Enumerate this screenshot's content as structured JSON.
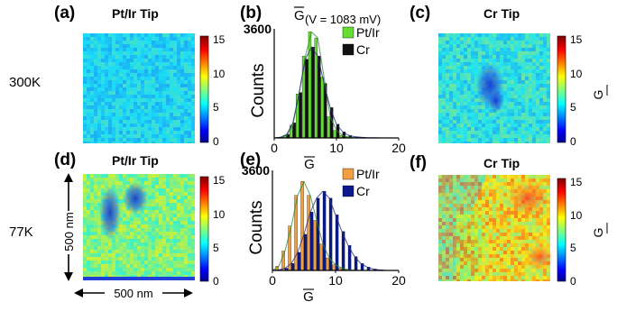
{
  "panels": {
    "a": {
      "label": "(a)",
      "title": "Pt/Ir Tip"
    },
    "b": {
      "label": "(b)",
      "title_prefix": "G",
      "title_cond": "(V = 1083 mV)"
    },
    "c": {
      "label": "(c)",
      "title": "Cr Tip"
    },
    "d": {
      "label": "(d)",
      "title": "Pt/Ir Tip"
    },
    "e": {
      "label": "(e)"
    },
    "f": {
      "label": "(f)",
      "title": "Cr Tip"
    }
  },
  "row_labels": {
    "top": "300K",
    "bottom": "77K"
  },
  "scale_bar": {
    "vertical": "500 nm",
    "horizontal": "500 nm"
  },
  "colorbar": {
    "ticks": [
      "15",
      "10",
      "5",
      "0"
    ],
    "label": "G"
  },
  "chart_data": [
    {
      "type": "bar",
      "panel": "b",
      "title": "G(V = 1083 mV)",
      "xlabel": "G",
      "ylabel": "Counts",
      "xlim": [
        0,
        20
      ],
      "ylim": [
        0,
        3600
      ],
      "x_ticks": [
        "0",
        "10",
        "20"
      ],
      "y_tick_label": "3600",
      "legend": "top-right",
      "bin_width": 1,
      "x": [
        1,
        2,
        3,
        4,
        5,
        6,
        7,
        8,
        9,
        10,
        11,
        12,
        13,
        14,
        15,
        16,
        17,
        18,
        19
      ],
      "series": [
        {
          "name": "Pt/Ir",
          "color": "#66dd33",
          "values": [
            20,
            80,
            420,
            1450,
            2700,
            3500,
            3300,
            2000,
            700,
            250,
            80,
            30,
            10,
            5,
            0,
            0,
            0,
            0,
            0
          ]
        },
        {
          "name": "Cr",
          "color": "#111111",
          "values": [
            20,
            120,
            500,
            1500,
            2600,
            3000,
            2700,
            1800,
            1000,
            450,
            200,
            80,
            40,
            20,
            10,
            5,
            0,
            0,
            0
          ]
        }
      ]
    },
    {
      "type": "bar",
      "panel": "e",
      "xlabel": "G",
      "ylabel": "Counts",
      "xlim": [
        0,
        20
      ],
      "ylim": [
        0,
        3600
      ],
      "x_ticks": [
        "0",
        "10",
        "20"
      ],
      "y_tick_label": "3600",
      "legend": "top-right",
      "bin_width": 1,
      "x": [
        1,
        2,
        3,
        4,
        5,
        6,
        7,
        8,
        9,
        10,
        11,
        12,
        13,
        14,
        15,
        16,
        17,
        18,
        19
      ],
      "series": [
        {
          "name": "Pt/Ir",
          "color": "#f0a040",
          "values": [
            150,
            700,
            1600,
            2700,
            3200,
            2700,
            1800,
            950,
            450,
            200,
            80,
            30,
            10,
            0,
            0,
            0,
            0,
            0,
            0
          ]
        },
        {
          "name": "Cr",
          "color": "#0b1a8c",
          "values": [
            20,
            80,
            250,
            650,
            1300,
            2100,
            2600,
            2850,
            2600,
            2000,
            1400,
            900,
            500,
            250,
            120,
            50,
            20,
            0,
            0
          ]
        }
      ]
    }
  ],
  "maps": {
    "a": {
      "mean_G": 5.5,
      "spread": 1.2
    },
    "c": {
      "mean_G": 6.0,
      "spread": 1.6
    },
    "d": {
      "mean_G": 7.5,
      "spread": 2.0
    },
    "f": {
      "mean_G": 9.5,
      "spread": 2.5
    }
  }
}
